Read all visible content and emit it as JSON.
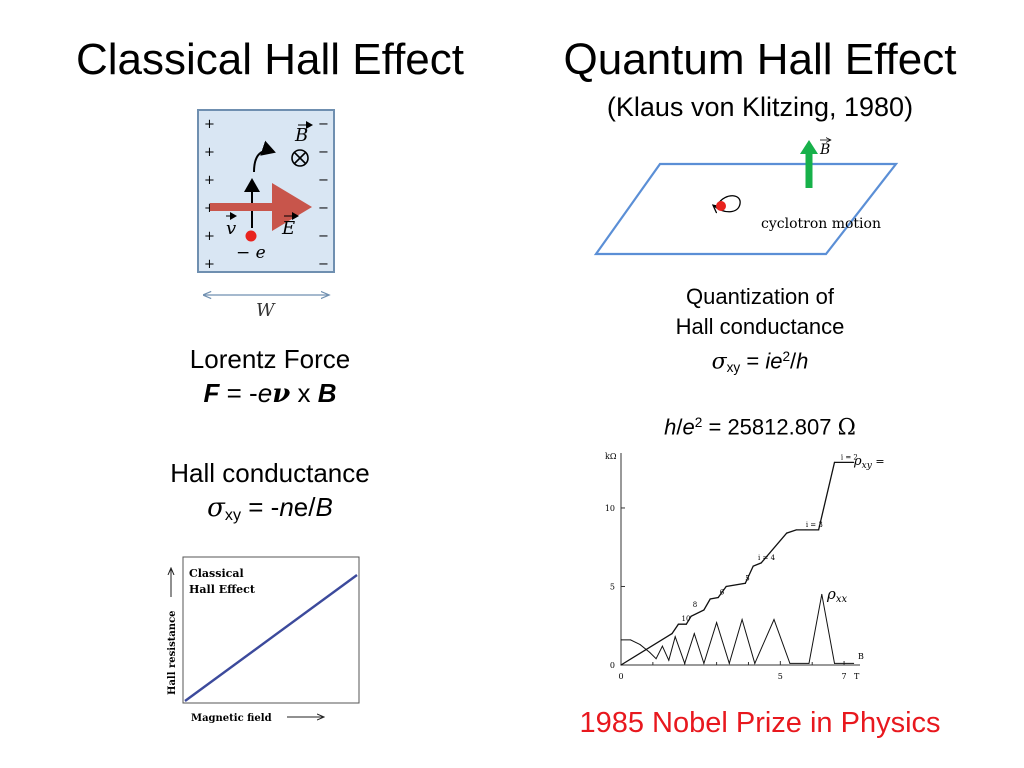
{
  "left": {
    "title": "Classical Hall Effect",
    "diagram": {
      "B_label": "B",
      "v_label": "v",
      "E_label": "E",
      "charge_label": "− e",
      "width_label": "W",
      "plus_sign": "+",
      "minus_sign": "−"
    },
    "lorentz": {
      "heading": "Lorentz Force",
      "F": "F",
      "eq": " = -",
      "e": "e",
      "nu": "ν",
      "x": " x ",
      "B": "B"
    },
    "hall_conductance": {
      "heading": "Hall conductance",
      "sigma": "σ",
      "sub": "xy",
      "eq": " = -",
      "n": "n",
      "e": "e",
      "slash": "/",
      "B": "B"
    },
    "graph": {
      "legend_line1": "Classical",
      "legend_line2": "Hall Effect",
      "ylabel": "Hall resistance",
      "xlabel": "Magnetic field"
    }
  },
  "right": {
    "title": "Quantum Hall Effect",
    "subtitle": "(Klaus von Klitzing, 1980)",
    "diagram": {
      "B_label": "B",
      "caption": "cyclotron motion"
    },
    "quantization": {
      "line1": "Quantization of",
      "line2": "Hall conductance",
      "sigma": "σ",
      "sub": "xy",
      "eq": " = ",
      "i": "i",
      "e": "e",
      "exp": "2",
      "slash": "/",
      "h": "h"
    },
    "klitzing_constant": {
      "h": "h",
      "slash": "/",
      "e": "e",
      "exp": "2",
      "value": " = 25812.807 ",
      "unit": "Ω"
    },
    "plot": {
      "y_unit": "kΩ",
      "y_ticks": [
        "0",
        "5",
        "10"
      ],
      "x_ticks": [
        "0",
        "5",
        "7"
      ],
      "x_axis": "B",
      "x_unit": "T",
      "rho_xy": "ρ",
      "rho_xy_sub": "xy",
      "rho_xy_eq": " =",
      "rho_xx": "ρ",
      "rho_xx_sub": "xx",
      "plateau_labels": [
        "i = 2",
        "i = 3",
        "i = 4",
        "5",
        "6",
        "8",
        "10"
      ]
    },
    "nobel": "1985 Nobel Prize in Physics"
  },
  "colors": {
    "panel_fill": "#d9e6f3",
    "panel_border": "#6f8fb0",
    "arrow_red": "#c8554b",
    "dot_red": "#e8231e",
    "plane_blue": "#5b8fd6",
    "arrow_green": "#17b14a",
    "line_navy": "#3c4a9c",
    "nobel_red": "#e8181e"
  },
  "chart_data": {
    "type": "line",
    "title": "",
    "xlabel": "B",
    "ylabel": "kΩ",
    "x_unit": "T",
    "xlim": [
      0,
      7.5
    ],
    "ylim": [
      0,
      13.5
    ],
    "series": [
      {
        "name": "ρxy",
        "x": [
          0,
          1.6,
          1.8,
          2.05,
          2.2,
          2.6,
          2.8,
          3.05,
          3.3,
          3.9,
          4.15,
          4.4,
          5.2,
          5.5,
          5.8,
          6.2,
          6.7,
          7.3
        ],
        "y": [
          0,
          2.0,
          2.6,
          2.6,
          3.1,
          3.5,
          4.2,
          4.3,
          5.0,
          5.2,
          6.3,
          6.5,
          8.4,
          8.6,
          8.6,
          8.6,
          12.9,
          12.9
        ]
      },
      {
        "name": "ρxx",
        "x": [
          0,
          0.3,
          0.6,
          0.9,
          1.1,
          1.3,
          1.5,
          1.7,
          2.0,
          2.3,
          2.6,
          3.0,
          3.4,
          3.8,
          4.2,
          4.8,
          5.3,
          5.9,
          6.3,
          6.7,
          7.3
        ],
        "y": [
          1.6,
          1.6,
          1.3,
          0.8,
          0.4,
          1.2,
          0.3,
          1.8,
          0.1,
          2.0,
          0.1,
          2.7,
          0.1,
          2.9,
          0.1,
          2.9,
          0.1,
          0.1,
          4.5,
          0.1,
          0.1
        ]
      }
    ]
  }
}
